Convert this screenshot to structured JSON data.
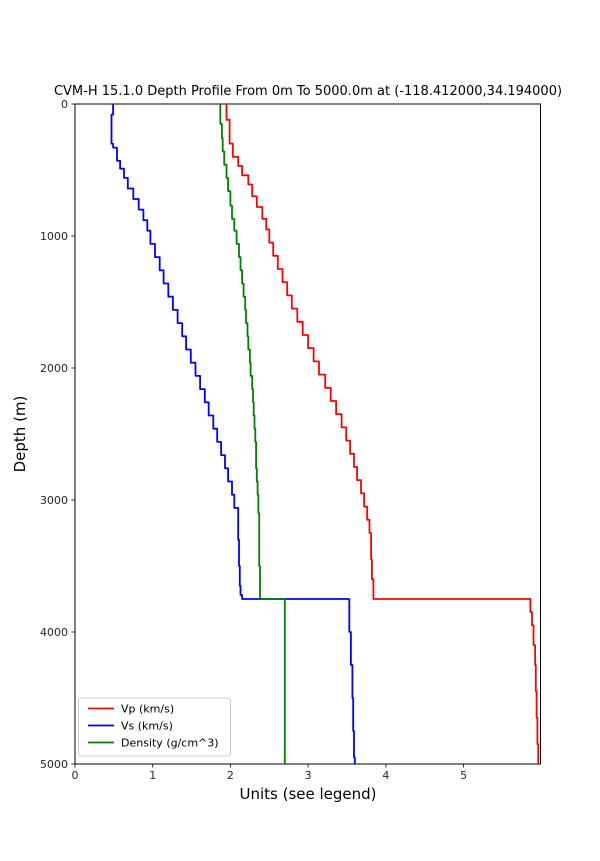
{
  "chart_data": {
    "type": "line",
    "title": "CVM-H 15.1.0 Depth Profile From 0m To 5000.0m at (-118.412000,34.194000)",
    "xlabel": "Units (see legend)",
    "ylabel": "Depth (m)",
    "xlim": [
      0,
      5.99
    ],
    "depth_range": [
      0,
      5000
    ],
    "y_axis_inverted": true,
    "grid": false,
    "x_ticks": [
      0,
      1,
      2,
      3,
      4,
      5
    ],
    "y_ticks": [
      0,
      1000,
      2000,
      3000,
      4000,
      5000
    ],
    "legend": {
      "position": "lower left",
      "entries": [
        {
          "key": "vp",
          "label": "Vp (km/s)",
          "color": "#ff0000"
        },
        {
          "key": "vs",
          "label": "Vs (km/s)",
          "color": "#0000ff"
        },
        {
          "key": "density",
          "label": "Density (g/cm^3)",
          "color": "#008000"
        }
      ]
    },
    "series": [
      {
        "key": "vp",
        "name": "Vp (km/s)",
        "color": "#ff0000",
        "points_depth_value": [
          [
            0,
            1.95
          ],
          [
            120,
            1.99
          ],
          [
            300,
            2.03
          ],
          [
            400,
            2.1
          ],
          [
            470,
            2.15
          ],
          [
            540,
            2.23
          ],
          [
            610,
            2.28
          ],
          [
            700,
            2.34
          ],
          [
            780,
            2.41
          ],
          [
            870,
            2.46
          ],
          [
            950,
            2.5
          ],
          [
            1050,
            2.55
          ],
          [
            1150,
            2.61
          ],
          [
            1250,
            2.67
          ],
          [
            1350,
            2.73
          ],
          [
            1450,
            2.79
          ],
          [
            1550,
            2.86
          ],
          [
            1650,
            2.93
          ],
          [
            1750,
            3.0
          ],
          [
            1850,
            3.07
          ],
          [
            1950,
            3.14
          ],
          [
            2050,
            3.22
          ],
          [
            2150,
            3.29
          ],
          [
            2250,
            3.36
          ],
          [
            2350,
            3.43
          ],
          [
            2450,
            3.49
          ],
          [
            2550,
            3.54
          ],
          [
            2650,
            3.59
          ],
          [
            2750,
            3.63
          ],
          [
            2850,
            3.68
          ],
          [
            2950,
            3.72
          ],
          [
            3050,
            3.76
          ],
          [
            3150,
            3.79
          ],
          [
            3250,
            3.81
          ],
          [
            3450,
            3.82
          ],
          [
            3600,
            3.84
          ],
          [
            3750,
            5.86
          ],
          [
            3850,
            5.88
          ],
          [
            3950,
            5.9
          ],
          [
            4100,
            5.92
          ],
          [
            4250,
            5.93
          ],
          [
            4450,
            5.94
          ],
          [
            4650,
            5.95
          ],
          [
            4850,
            5.96
          ]
        ]
      },
      {
        "key": "vs",
        "name": "Vs (km/s)",
        "color": "#0000ff",
        "points_depth_value": [
          [
            0,
            0.49
          ],
          [
            80,
            0.47
          ],
          [
            300,
            0.49
          ],
          [
            330,
            0.54
          ],
          [
            430,
            0.58
          ],
          [
            490,
            0.63
          ],
          [
            560,
            0.68
          ],
          [
            640,
            0.75
          ],
          [
            720,
            0.82
          ],
          [
            800,
            0.88
          ],
          [
            880,
            0.93
          ],
          [
            960,
            0.97
          ],
          [
            1060,
            1.03
          ],
          [
            1160,
            1.09
          ],
          [
            1260,
            1.14
          ],
          [
            1360,
            1.2
          ],
          [
            1460,
            1.26
          ],
          [
            1560,
            1.32
          ],
          [
            1660,
            1.38
          ],
          [
            1760,
            1.43
          ],
          [
            1860,
            1.49
          ],
          [
            1960,
            1.55
          ],
          [
            2060,
            1.61
          ],
          [
            2160,
            1.67
          ],
          [
            2260,
            1.72
          ],
          [
            2360,
            1.78
          ],
          [
            2460,
            1.83
          ],
          [
            2560,
            1.88
          ],
          [
            2660,
            1.93
          ],
          [
            2760,
            1.97
          ],
          [
            2860,
            2.02
          ],
          [
            2960,
            2.05
          ],
          [
            3060,
            2.1
          ],
          [
            3300,
            2.11
          ],
          [
            3500,
            2.12
          ],
          [
            3650,
            2.13
          ],
          [
            3720,
            2.15
          ],
          [
            3750,
            3.53
          ],
          [
            4000,
            3.55
          ],
          [
            4250,
            3.57
          ],
          [
            4500,
            3.58
          ],
          [
            4750,
            3.59
          ],
          [
            4950,
            3.6
          ]
        ]
      },
      {
        "key": "density",
        "name": "Density (g/cm^3)",
        "color": "#008000",
        "points_depth_value": [
          [
            0,
            1.87
          ],
          [
            150,
            1.89
          ],
          [
            260,
            1.9
          ],
          [
            360,
            1.92
          ],
          [
            460,
            1.95
          ],
          [
            560,
            1.97
          ],
          [
            660,
            2.0
          ],
          [
            770,
            2.02
          ],
          [
            870,
            2.05
          ],
          [
            960,
            2.08
          ],
          [
            1060,
            2.11
          ],
          [
            1160,
            2.13
          ],
          [
            1260,
            2.15
          ],
          [
            1360,
            2.17
          ],
          [
            1460,
            2.19
          ],
          [
            1560,
            2.2
          ],
          [
            1660,
            2.22
          ],
          [
            1760,
            2.23
          ],
          [
            1860,
            2.25
          ],
          [
            1960,
            2.26
          ],
          [
            2060,
            2.28
          ],
          [
            2160,
            2.29
          ],
          [
            2260,
            2.3
          ],
          [
            2360,
            2.31
          ],
          [
            2460,
            2.32
          ],
          [
            2560,
            2.33
          ],
          [
            2660,
            2.33
          ],
          [
            2760,
            2.34
          ],
          [
            2860,
            2.35
          ],
          [
            2960,
            2.36
          ],
          [
            3100,
            2.37
          ],
          [
            3300,
            2.37
          ],
          [
            3500,
            2.38
          ],
          [
            3700,
            2.38
          ],
          [
            3750,
            2.7
          ],
          [
            4500,
            2.7
          ]
        ]
      }
    ]
  }
}
